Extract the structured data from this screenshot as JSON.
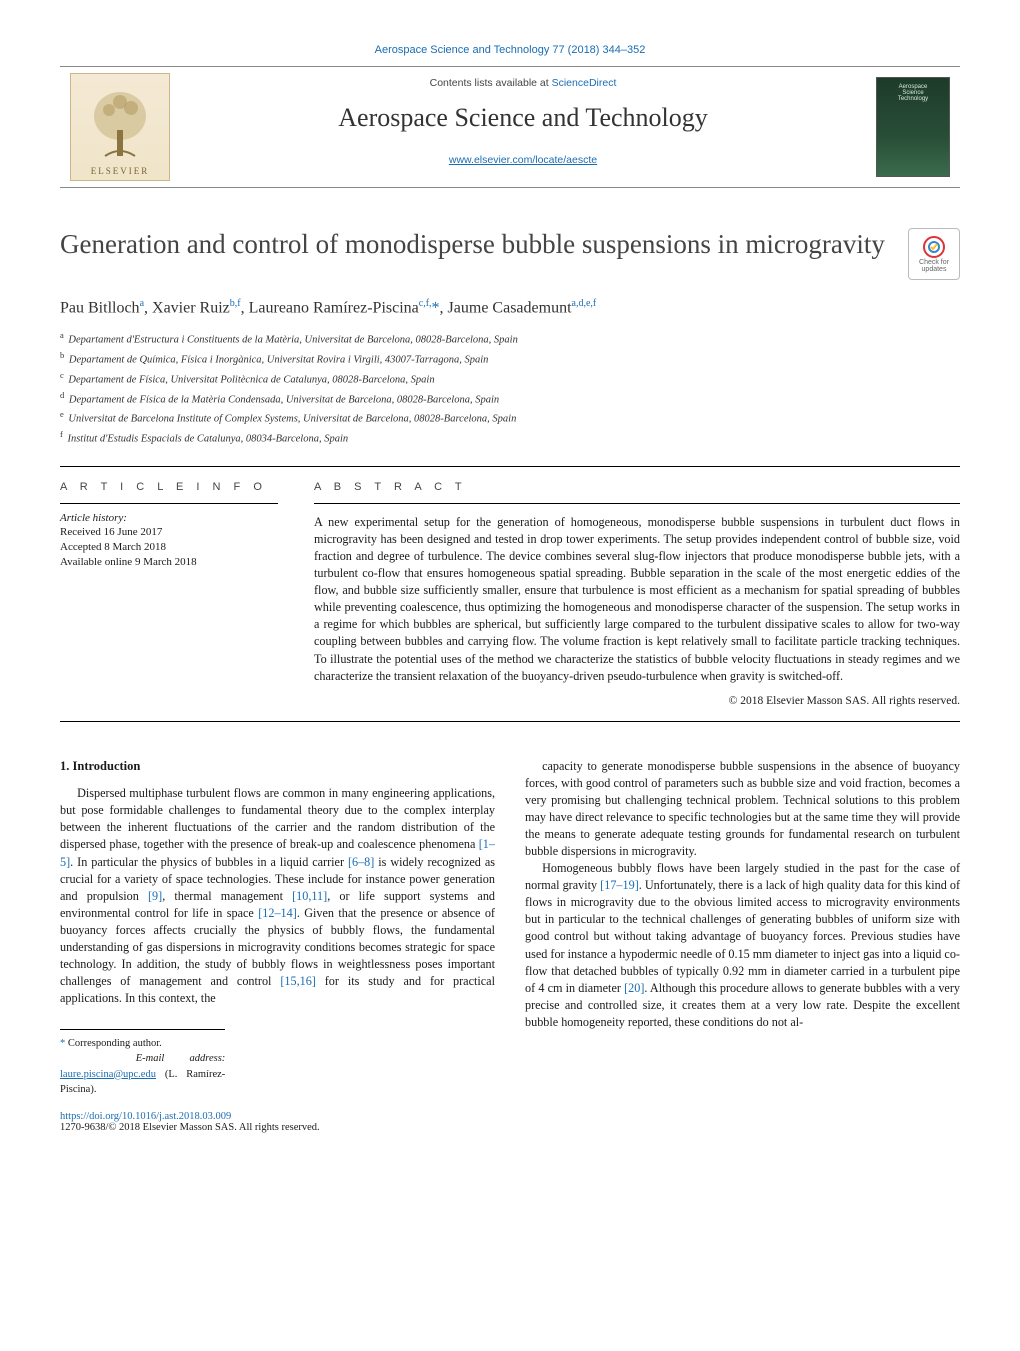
{
  "top_citation": "Aerospace Science and Technology 77 (2018) 344–352",
  "masthead": {
    "contents_prefix": "Contents lists available at ",
    "contents_link": "ScienceDirect",
    "journal_title": "Aerospace Science and Technology",
    "journal_url": "www.elsevier.com/locate/aescte",
    "publisher_label": "ELSEVIER",
    "cover_label": "Aerospace\nScience\nTechnology"
  },
  "crossmark": {
    "line1": "Check for",
    "line2": "updates"
  },
  "article": {
    "title": "Generation and control of monodisperse bubble suspensions in microgravity",
    "authors_html": "Pau Bitlloch<sup>a</sup>, Xavier Ruiz<sup>b,f</sup>, Laureano Ramírez-Piscina<sup>c,f,</sup><span class='corr-star'>*</span>, Jaume Casademunt<sup>a,d,e,f</sup>",
    "affiliations": [
      {
        "key": "a",
        "text": "Departament d'Estructura i Constituents de la Matèria, Universitat de Barcelona, 08028-Barcelona, Spain"
      },
      {
        "key": "b",
        "text": "Departament de Química, Física i Inorgànica, Universitat Rovira i Virgili, 43007-Tarragona, Spain"
      },
      {
        "key": "c",
        "text": "Departament de Física, Universitat Politècnica de Catalunya, 08028-Barcelona, Spain"
      },
      {
        "key": "d",
        "text": "Departament de Física de la Matèria Condensada, Universitat de Barcelona, 08028-Barcelona, Spain"
      },
      {
        "key": "e",
        "text": "Universitat de Barcelona Institute of Complex Systems, Universitat de Barcelona, 08028-Barcelona, Spain"
      },
      {
        "key": "f",
        "text": "Institut d'Estudis Espacials de Catalunya, 08034-Barcelona, Spain"
      }
    ]
  },
  "info": {
    "heading": "A R T I C L E   I N F O",
    "history_label": "Article history:",
    "received": "Received 16 June 2017",
    "accepted": "Accepted 8 March 2018",
    "online": "Available online 9 March 2018"
  },
  "abstract": {
    "heading": "A B S T R A C T",
    "text": "A new experimental setup for the generation of homogeneous, monodisperse bubble suspensions in turbulent duct flows in microgravity has been designed and tested in drop tower experiments. The setup provides independent control of bubble size, void fraction and degree of turbulence. The device combines several slug-flow injectors that produce monodisperse bubble jets, with a turbulent co-flow that ensures homogeneous spatial spreading. Bubble separation in the scale of the most energetic eddies of the flow, and bubble size sufficiently smaller, ensure that turbulence is most efficient as a mechanism for spatial spreading of bubbles while preventing coalescence, thus optimizing the homogeneous and monodisperse character of the suspension. The setup works in a regime for which bubbles are spherical, but sufficiently large compared to the turbulent dissipative scales to allow for two-way coupling between bubbles and carrying flow. The volume fraction is kept relatively small to facilitate particle tracking techniques. To illustrate the potential uses of the method we characterize the statistics of bubble velocity fluctuations in steady regimes and we characterize the transient relaxation of the buoyancy-driven pseudo-turbulence when gravity is switched-off.",
    "copyright": "© 2018 Elsevier Masson SAS. All rights reserved."
  },
  "body": {
    "section_number": "1.",
    "section_title": "Introduction",
    "left_p1": "Dispersed multiphase turbulent flows are common in many engineering applications, but pose formidable challenges to fundamental theory due to the complex interplay between the inherent fluctuations of the carrier and the random distribution of the dispersed phase, together with the presence of break-up and coalescence phenomena [1–5]. In particular the physics of bubbles in a liquid carrier [6–8] is widely recognized as crucial for a variety of space technologies. These include for instance power generation and propulsion [9], thermal management [10,11], or life support systems and environmental control for life in space [12–14]. Given that the presence or absence of buoyancy forces affects crucially the physics of bubbly flows, the fundamental understanding of gas dispersions in microgravity conditions becomes strategic for space technology. In addition, the study of bubbly flows in weightlessness poses important challenges of management and control [15,16] for its study and for practical applications. In this context, the",
    "right_p1": "capacity to generate monodisperse bubble suspensions in the absence of buoyancy forces, with good control of parameters such as bubble size and void fraction, becomes a very promising but challenging technical problem. Technical solutions to this problem may have direct relevance to specific technologies but at the same time they will provide the means to generate adequate testing grounds for fundamental research on turbulent bubble dispersions in microgravity.",
    "right_p2": "Homogeneous bubbly flows have been largely studied in the past for the case of normal gravity [17–19]. Unfortunately, there is a lack of high quality data for this kind of flows in microgravity due to the obvious limited access to microgravity environments but in particular to the technical challenges of generating bubbles of uniform size with good control but without taking advantage of buoyancy forces. Previous studies have used for instance a hypodermic needle of 0.15 mm diameter to inject gas into a liquid co-flow that detached bubbles of typically 0.92 mm in diameter carried in a turbulent pipe of 4 cm in diameter [20]. Although this procedure allows to generate bubbles with a very precise and controlled size, it creates them at a very low rate. Despite the excellent bubble homogeneity reported, these conditions do not al-"
  },
  "footnote": {
    "corr": "Corresponding author.",
    "email_label": "E-mail address:",
    "email": "laure.piscina@upc.edu",
    "email_who": "(L. Ramírez-Piscina)."
  },
  "doi": {
    "url": "https://doi.org/10.1016/j.ast.2018.03.009",
    "issn_line": "1270-9638/© 2018 Elsevier Masson SAS. All rights reserved."
  },
  "colors": {
    "link": "#1a6db3",
    "text": "#1a1a1a",
    "rule": "#000000"
  }
}
